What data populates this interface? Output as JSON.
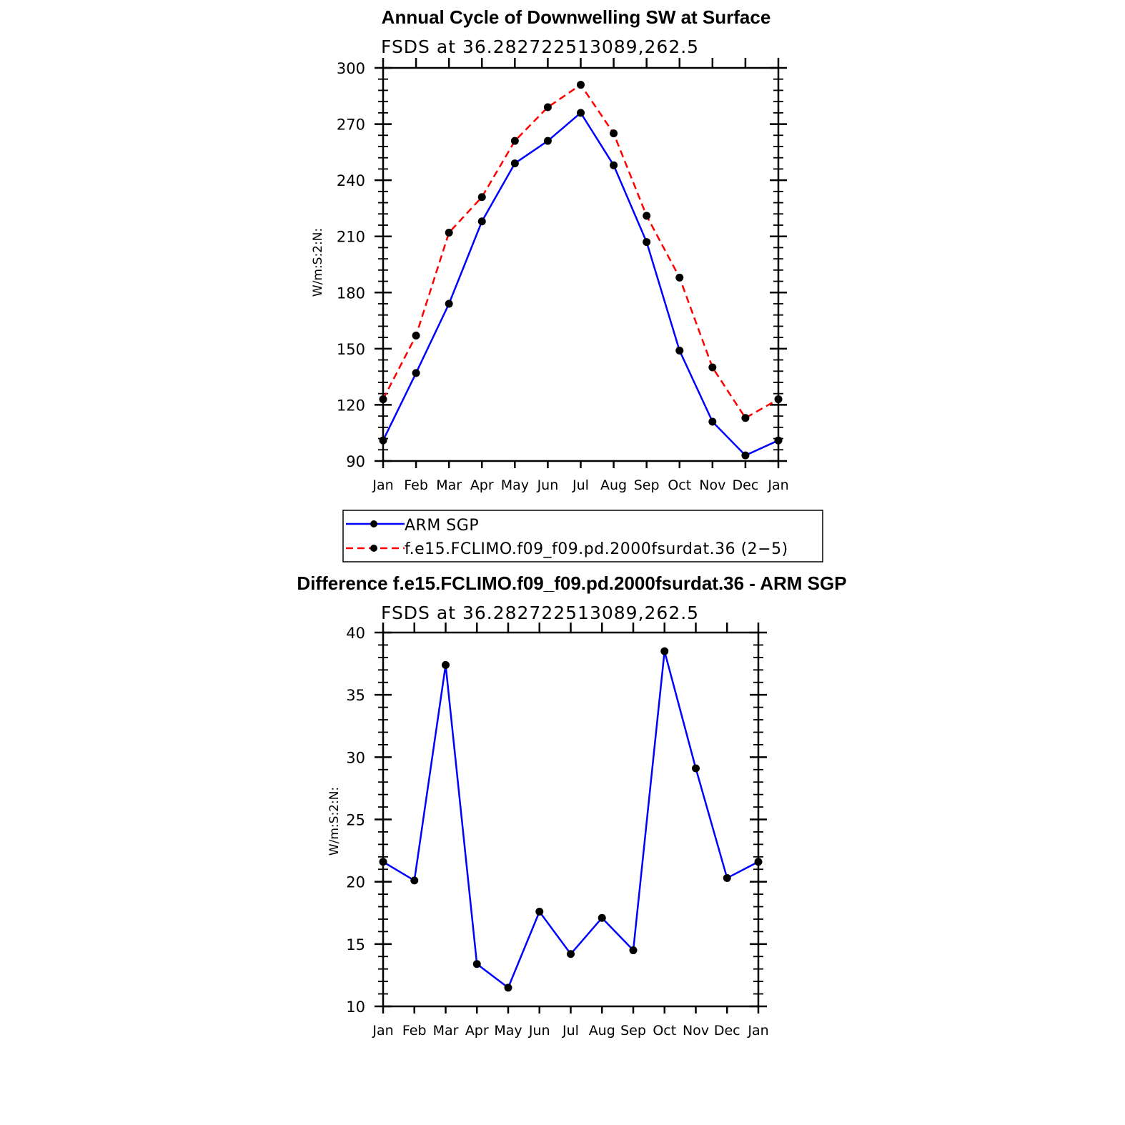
{
  "chart_data": [
    {
      "type": "line",
      "title": "Annual Cycle of Downwelling SW at Surface",
      "subtitle": "FSDS at 36.282722513089,262.5",
      "ylabel": "W/m:S:2:N:",
      "xlabel": "",
      "categories": [
        "Jan",
        "Feb",
        "Mar",
        "Apr",
        "May",
        "Jun",
        "Jul",
        "Aug",
        "Sep",
        "Oct",
        "Nov",
        "Dec",
        "Jan"
      ],
      "ylim": [
        90,
        300
      ],
      "yticks": [
        "90",
        "120",
        "150",
        "180",
        "210",
        "240",
        "270",
        "300"
      ],
      "yminor_step": 6,
      "legend_position": "below",
      "series": [
        {
          "name": "ARM SGP",
          "color": "#0000ff",
          "dash": "solid",
          "values": [
            101,
            137,
            174,
            218,
            249,
            261,
            276,
            248,
            207,
            149,
            111,
            93,
            101
          ]
        },
        {
          "name": "f.e15.FCLIMO.f09_f09.pd.2000fsurdat.36 (2−5)",
          "color": "#ff0000",
          "dash": "dashed",
          "values": [
            123,
            157,
            212,
            231,
            261,
            279,
            291,
            265,
            221,
            188,
            140,
            113,
            123
          ]
        }
      ]
    },
    {
      "type": "line",
      "title": "Difference f.e15.FCLIMO.f09_f09.pd.2000fsurdat.36 - ARM SGP",
      "subtitle": "FSDS at 36.282722513089,262.5",
      "ylabel": "W/m:S:2:N:",
      "xlabel": "",
      "categories": [
        "Jan",
        "Feb",
        "Mar",
        "Apr",
        "May",
        "Jun",
        "Jul",
        "Aug",
        "Sep",
        "Oct",
        "Nov",
        "Dec",
        "Jan"
      ],
      "ylim": [
        10,
        40
      ],
      "yticks": [
        "10",
        "15",
        "20",
        "25",
        "30",
        "35",
        "40"
      ],
      "yminor_step": 1,
      "series": [
        {
          "color": "#0000ff",
          "dash": "solid",
          "values": [
            21.6,
            20.1,
            37.4,
            13.4,
            11.5,
            17.6,
            14.2,
            17.1,
            14.5,
            38.5,
            29.1,
            20.3,
            21.6
          ]
        }
      ]
    }
  ]
}
